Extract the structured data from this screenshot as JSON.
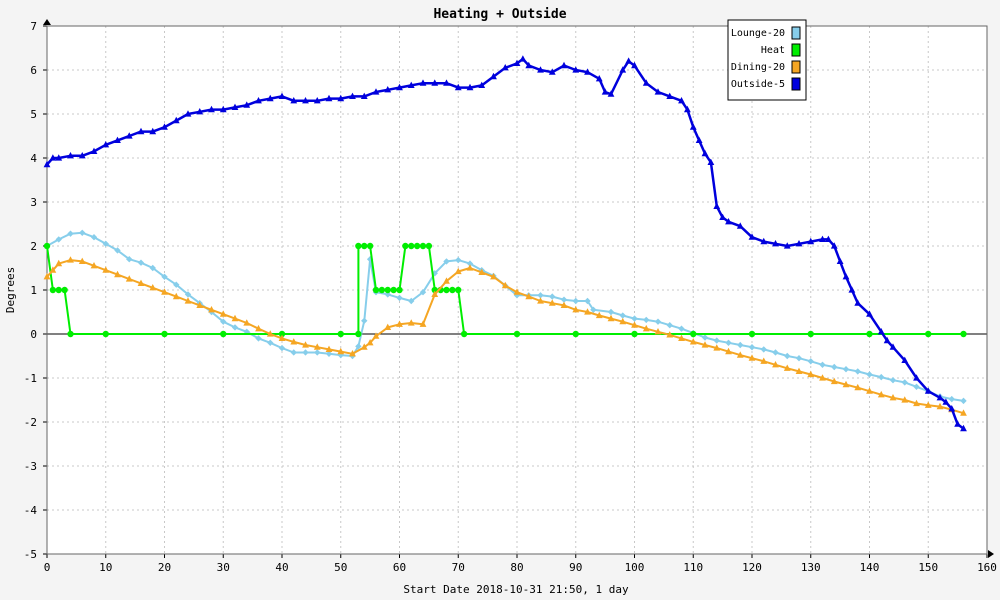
{
  "chart_data": {
    "type": "line",
    "title": "Heating + Outside",
    "xlabel": "Start Date 2018-10-31 21:50, 1 day",
    "ylabel": "Degrees",
    "xlim": [
      0,
      160
    ],
    "ylim": [
      -5,
      7
    ],
    "xticks": [
      0,
      10,
      20,
      30,
      40,
      50,
      60,
      70,
      80,
      90,
      100,
      110,
      120,
      130,
      140,
      150,
      160
    ],
    "yticks": [
      -5,
      -4,
      -3,
      -2,
      -1,
      0,
      1,
      2,
      3,
      4,
      5,
      6,
      7
    ],
    "grid": true,
    "legend_position": "top-right",
    "series": [
      {
        "name": "Lounge-20",
        "color": "#87ceeb",
        "marker": "diamond",
        "points": [
          [
            0,
            2.0
          ],
          [
            2,
            2.15
          ],
          [
            4,
            2.28
          ],
          [
            6,
            2.3
          ],
          [
            8,
            2.2
          ],
          [
            10,
            2.05
          ],
          [
            12,
            1.9
          ],
          [
            14,
            1.7
          ],
          [
            16,
            1.62
          ],
          [
            18,
            1.5
          ],
          [
            20,
            1.3
          ],
          [
            22,
            1.12
          ],
          [
            24,
            0.9
          ],
          [
            26,
            0.7
          ],
          [
            28,
            0.5
          ],
          [
            30,
            0.28
          ],
          [
            32,
            0.15
          ],
          [
            34,
            0.05
          ],
          [
            36,
            -0.1
          ],
          [
            38,
            -0.2
          ],
          [
            40,
            -0.32
          ],
          [
            42,
            -0.42
          ],
          [
            44,
            -0.42
          ],
          [
            46,
            -0.42
          ],
          [
            48,
            -0.45
          ],
          [
            50,
            -0.48
          ],
          [
            52,
            -0.5
          ],
          [
            53,
            -0.28
          ],
          [
            54,
            0.3
          ],
          [
            55,
            1.7
          ],
          [
            56,
            0.95
          ],
          [
            58,
            0.9
          ],
          [
            60,
            0.82
          ],
          [
            62,
            0.75
          ],
          [
            64,
            0.95
          ],
          [
            66,
            1.38
          ],
          [
            68,
            1.65
          ],
          [
            70,
            1.68
          ],
          [
            72,
            1.6
          ],
          [
            74,
            1.45
          ],
          [
            76,
            1.32
          ],
          [
            78,
            1.1
          ],
          [
            80,
            0.88
          ],
          [
            82,
            0.88
          ],
          [
            84,
            0.88
          ],
          [
            86,
            0.85
          ],
          [
            88,
            0.78
          ],
          [
            90,
            0.75
          ],
          [
            92,
            0.75
          ],
          [
            93,
            0.55
          ],
          [
            96,
            0.5
          ],
          [
            98,
            0.42
          ],
          [
            100,
            0.35
          ],
          [
            102,
            0.32
          ],
          [
            104,
            0.28
          ],
          [
            106,
            0.2
          ],
          [
            108,
            0.12
          ],
          [
            110,
            0.02
          ],
          [
            112,
            -0.08
          ],
          [
            114,
            -0.15
          ],
          [
            116,
            -0.2
          ],
          [
            118,
            -0.25
          ],
          [
            120,
            -0.3
          ],
          [
            122,
            -0.35
          ],
          [
            124,
            -0.42
          ],
          [
            126,
            -0.5
          ],
          [
            128,
            -0.55
          ],
          [
            130,
            -0.62
          ],
          [
            132,
            -0.7
          ],
          [
            134,
            -0.75
          ],
          [
            136,
            -0.8
          ],
          [
            138,
            -0.85
          ],
          [
            140,
            -0.92
          ],
          [
            142,
            -0.98
          ],
          [
            144,
            -1.05
          ],
          [
            146,
            -1.1
          ],
          [
            148,
            -1.2
          ],
          [
            150,
            -1.3
          ],
          [
            152,
            -1.42
          ],
          [
            154,
            -1.48
          ],
          [
            156,
            -1.52
          ]
        ]
      },
      {
        "name": "Heat",
        "color": "#00ee00",
        "marker": "circle",
        "points": [
          [
            0,
            2
          ],
          [
            1,
            1
          ],
          [
            2,
            1
          ],
          [
            3,
            1
          ],
          [
            4,
            0
          ],
          [
            10,
            0
          ],
          [
            20,
            0
          ],
          [
            30,
            0
          ],
          [
            40,
            0
          ],
          [
            50,
            0
          ],
          [
            53,
            0
          ],
          [
            53,
            2
          ],
          [
            54,
            2
          ],
          [
            55,
            2
          ],
          [
            56,
            1
          ],
          [
            57,
            1
          ],
          [
            58,
            1
          ],
          [
            59,
            1
          ],
          [
            60,
            1
          ],
          [
            61,
            2
          ],
          [
            62,
            2
          ],
          [
            63,
            2
          ],
          [
            64,
            2
          ],
          [
            65,
            2
          ],
          [
            66,
            1
          ],
          [
            67,
            1
          ],
          [
            68,
            1
          ],
          [
            69,
            1
          ],
          [
            70,
            1
          ],
          [
            71,
            0
          ],
          [
            80,
            0
          ],
          [
            90,
            0
          ],
          [
            100,
            0
          ],
          [
            110,
            0
          ],
          [
            120,
            0
          ],
          [
            130,
            0
          ],
          [
            140,
            0
          ],
          [
            150,
            0
          ],
          [
            156,
            0
          ]
        ]
      },
      {
        "name": "Dining-20",
        "color": "#f5a623",
        "marker": "triangle",
        "points": [
          [
            0,
            1.3
          ],
          [
            1,
            1.45
          ],
          [
            2,
            1.6
          ],
          [
            4,
            1.68
          ],
          [
            6,
            1.65
          ],
          [
            8,
            1.55
          ],
          [
            10,
            1.45
          ],
          [
            12,
            1.35
          ],
          [
            14,
            1.25
          ],
          [
            16,
            1.15
          ],
          [
            18,
            1.05
          ],
          [
            20,
            0.95
          ],
          [
            22,
            0.85
          ],
          [
            24,
            0.75
          ],
          [
            26,
            0.65
          ],
          [
            28,
            0.55
          ],
          [
            30,
            0.45
          ],
          [
            32,
            0.35
          ],
          [
            34,
            0.25
          ],
          [
            36,
            0.12
          ],
          [
            38,
            0.0
          ],
          [
            40,
            -0.1
          ],
          [
            42,
            -0.18
          ],
          [
            44,
            -0.25
          ],
          [
            46,
            -0.3
          ],
          [
            48,
            -0.35
          ],
          [
            50,
            -0.4
          ],
          [
            52,
            -0.45
          ],
          [
            54,
            -0.3
          ],
          [
            55,
            -0.2
          ],
          [
            56,
            -0.05
          ],
          [
            58,
            0.15
          ],
          [
            60,
            0.22
          ],
          [
            62,
            0.25
          ],
          [
            64,
            0.22
          ],
          [
            66,
            0.9
          ],
          [
            68,
            1.2
          ],
          [
            70,
            1.42
          ],
          [
            72,
            1.5
          ],
          [
            74,
            1.4
          ],
          [
            76,
            1.3
          ],
          [
            78,
            1.1
          ],
          [
            80,
            0.95
          ],
          [
            82,
            0.85
          ],
          [
            84,
            0.75
          ],
          [
            86,
            0.7
          ],
          [
            88,
            0.65
          ],
          [
            90,
            0.55
          ],
          [
            92,
            0.5
          ],
          [
            94,
            0.42
          ],
          [
            96,
            0.35
          ],
          [
            98,
            0.28
          ],
          [
            100,
            0.2
          ],
          [
            102,
            0.12
          ],
          [
            104,
            0.05
          ],
          [
            106,
            -0.02
          ],
          [
            108,
            -0.1
          ],
          [
            110,
            -0.18
          ],
          [
            112,
            -0.25
          ],
          [
            114,
            -0.32
          ],
          [
            116,
            -0.4
          ],
          [
            118,
            -0.48
          ],
          [
            120,
            -0.55
          ],
          [
            122,
            -0.62
          ],
          [
            124,
            -0.7
          ],
          [
            126,
            -0.78
          ],
          [
            128,
            -0.85
          ],
          [
            130,
            -0.92
          ],
          [
            132,
            -1.0
          ],
          [
            134,
            -1.08
          ],
          [
            136,
            -1.15
          ],
          [
            138,
            -1.22
          ],
          [
            140,
            -1.3
          ],
          [
            142,
            -1.38
          ],
          [
            144,
            -1.45
          ],
          [
            146,
            -1.5
          ],
          [
            148,
            -1.58
          ],
          [
            150,
            -1.62
          ],
          [
            152,
            -1.65
          ],
          [
            154,
            -1.72
          ],
          [
            156,
            -1.8
          ]
        ]
      },
      {
        "name": "Outside-5",
        "color": "#0000dd",
        "marker": "triangle",
        "points": [
          [
            0,
            3.85
          ],
          [
            1,
            4.0
          ],
          [
            2,
            4.0
          ],
          [
            4,
            4.05
          ],
          [
            6,
            4.05
          ],
          [
            8,
            4.15
          ],
          [
            10,
            4.3
          ],
          [
            12,
            4.4
          ],
          [
            14,
            4.5
          ],
          [
            16,
            4.6
          ],
          [
            18,
            4.6
          ],
          [
            20,
            4.7
          ],
          [
            22,
            4.85
          ],
          [
            24,
            5.0
          ],
          [
            26,
            5.05
          ],
          [
            28,
            5.1
          ],
          [
            30,
            5.1
          ],
          [
            32,
            5.15
          ],
          [
            34,
            5.2
          ],
          [
            36,
            5.3
          ],
          [
            38,
            5.35
          ],
          [
            40,
            5.4
          ],
          [
            42,
            5.3
          ],
          [
            44,
            5.3
          ],
          [
            46,
            5.3
          ],
          [
            48,
            5.35
          ],
          [
            50,
            5.35
          ],
          [
            52,
            5.4
          ],
          [
            54,
            5.4
          ],
          [
            56,
            5.5
          ],
          [
            58,
            5.55
          ],
          [
            60,
            5.6
          ],
          [
            62,
            5.65
          ],
          [
            64,
            5.7
          ],
          [
            66,
            5.7
          ],
          [
            68,
            5.7
          ],
          [
            70,
            5.6
          ],
          [
            72,
            5.6
          ],
          [
            74,
            5.65
          ],
          [
            76,
            5.85
          ],
          [
            78,
            6.05
          ],
          [
            80,
            6.15
          ],
          [
            81,
            6.25
          ],
          [
            82,
            6.1
          ],
          [
            84,
            6.0
          ],
          [
            86,
            5.95
          ],
          [
            88,
            6.1
          ],
          [
            90,
            6.0
          ],
          [
            92,
            5.95
          ],
          [
            94,
            5.8
          ],
          [
            95,
            5.5
          ],
          [
            96,
            5.45
          ],
          [
            98,
            6.0
          ],
          [
            99,
            6.2
          ],
          [
            100,
            6.1
          ],
          [
            102,
            5.7
          ],
          [
            104,
            5.5
          ],
          [
            106,
            5.4
          ],
          [
            108,
            5.3
          ],
          [
            109,
            5.1
          ],
          [
            110,
            4.7
          ],
          [
            111,
            4.4
          ],
          [
            112,
            4.1
          ],
          [
            113,
            3.9
          ],
          [
            114,
            2.9
          ],
          [
            115,
            2.65
          ],
          [
            116,
            2.55
          ],
          [
            118,
            2.45
          ],
          [
            120,
            2.2
          ],
          [
            122,
            2.1
          ],
          [
            124,
            2.05
          ],
          [
            126,
            2.0
          ],
          [
            128,
            2.05
          ],
          [
            130,
            2.1
          ],
          [
            132,
            2.15
          ],
          [
            133,
            2.15
          ],
          [
            134,
            2.0
          ],
          [
            135,
            1.65
          ],
          [
            136,
            1.3
          ],
          [
            137,
            1.0
          ],
          [
            138,
            0.7
          ],
          [
            140,
            0.45
          ],
          [
            142,
            0.05
          ],
          [
            143,
            -0.15
          ],
          [
            144,
            -0.3
          ],
          [
            146,
            -0.6
          ],
          [
            148,
            -1.0
          ],
          [
            150,
            -1.3
          ],
          [
            152,
            -1.45
          ],
          [
            153,
            -1.55
          ],
          [
            154,
            -1.7
          ],
          [
            155,
            -2.05
          ],
          [
            156,
            -2.15
          ]
        ]
      }
    ]
  }
}
